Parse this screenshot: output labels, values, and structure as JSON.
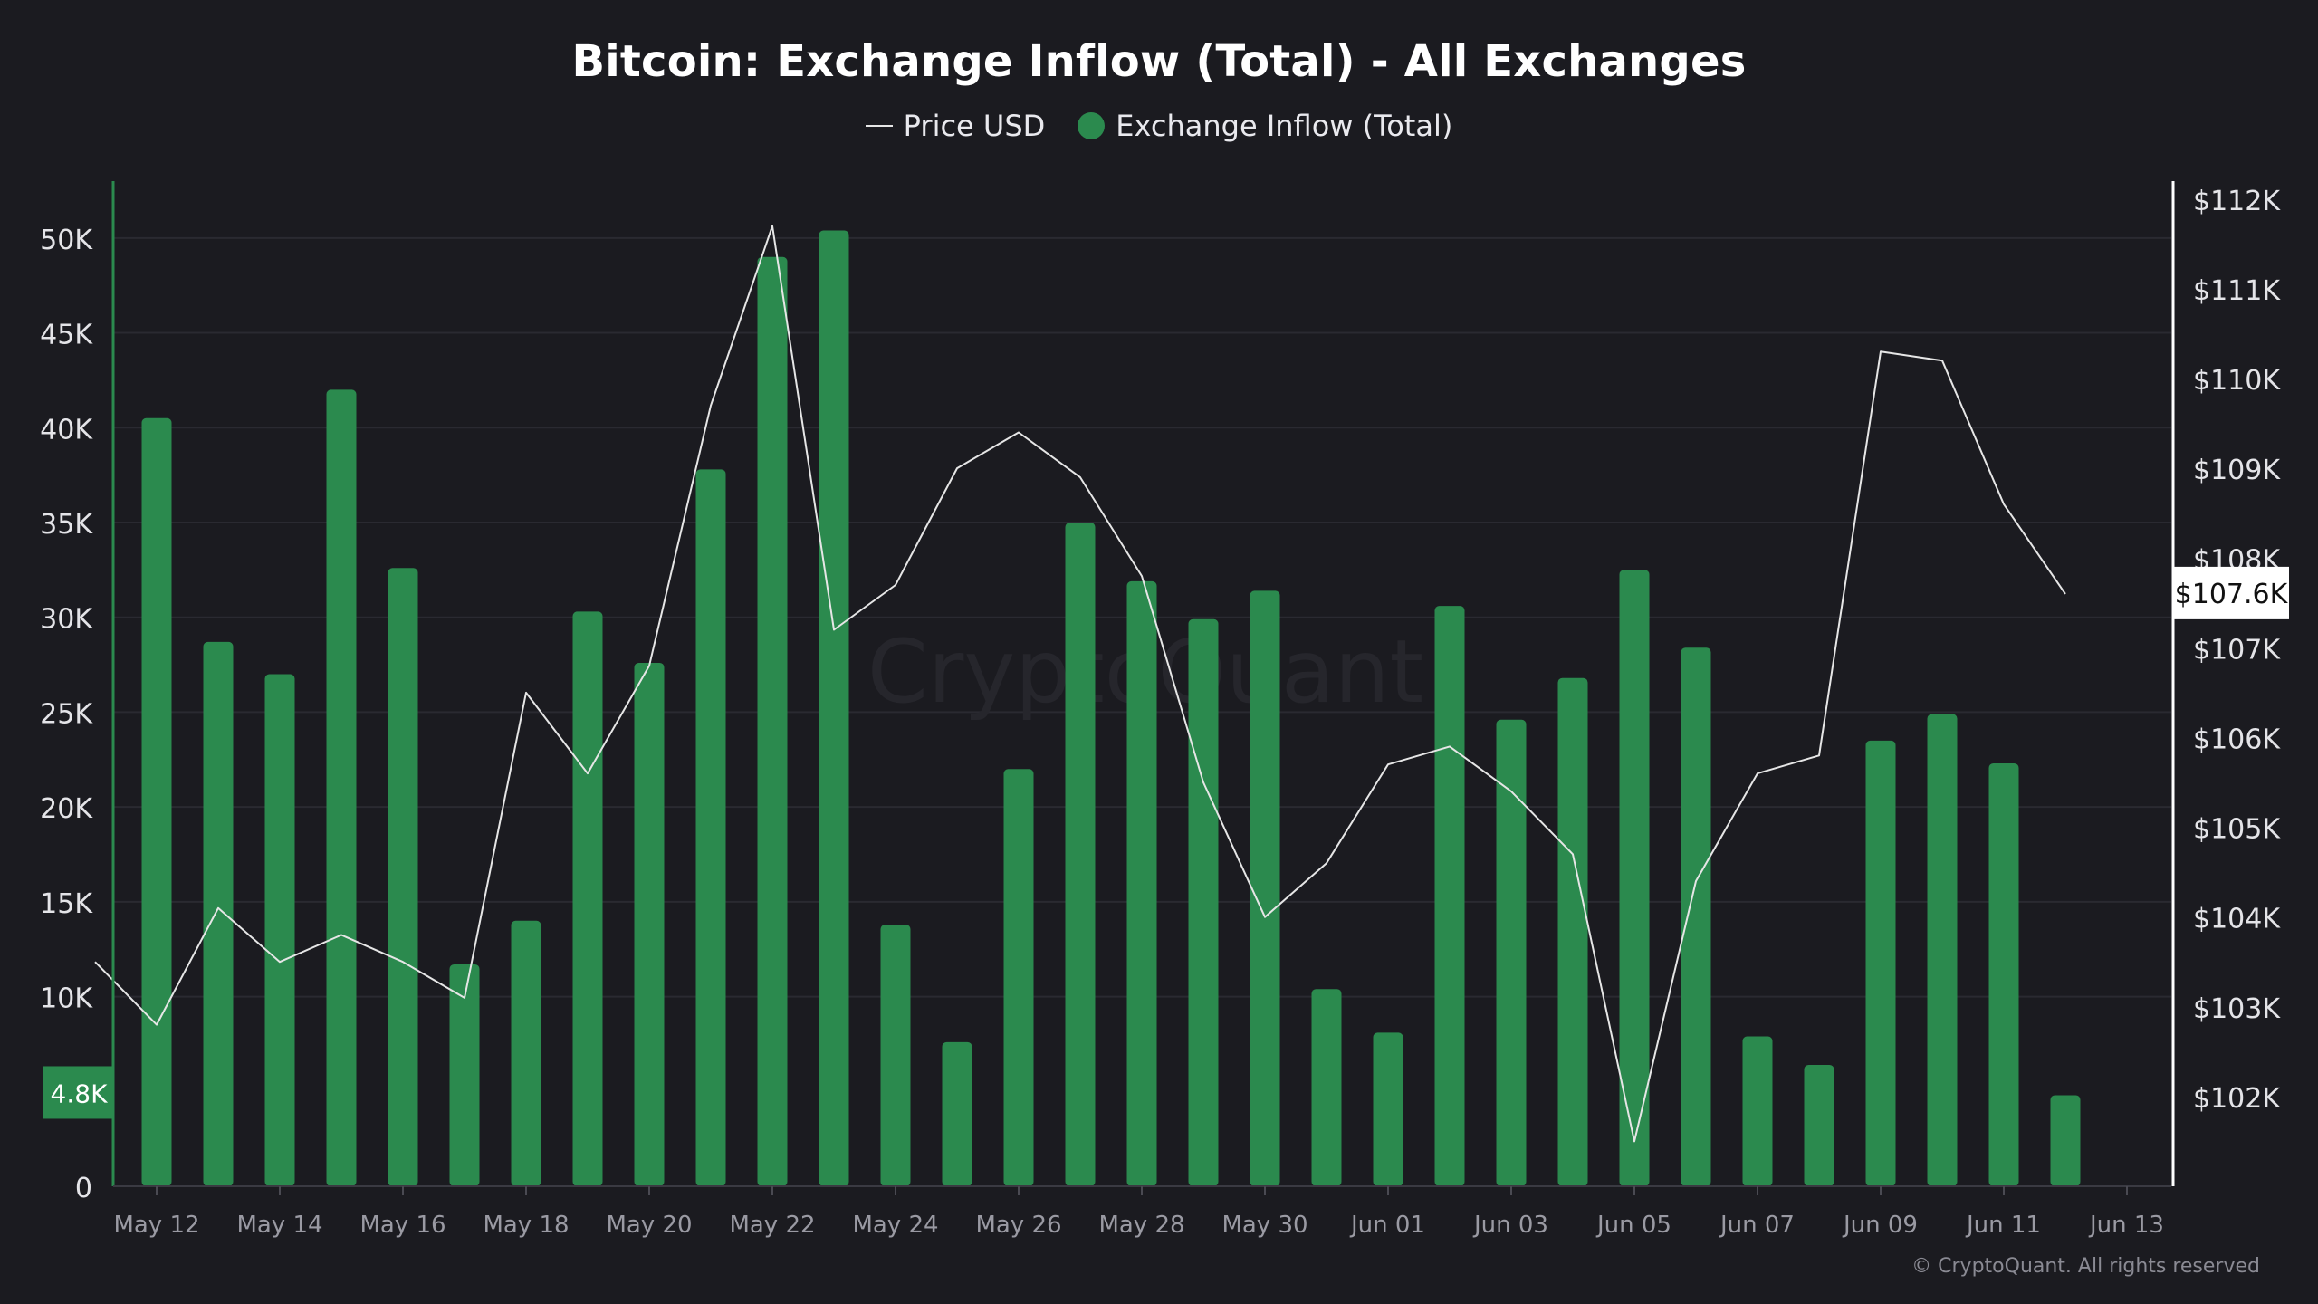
{
  "chart_data": {
    "type": "bar",
    "title": "Bitcoin: Exchange Inflow (Total) - All Exchanges",
    "legend": {
      "placement": "top-center",
      "entries": [
        "Price USD",
        "Exchange Inflow (Total)"
      ]
    },
    "colors": {
      "background": "#1b1b20",
      "bars": "#2b8a4e",
      "price_line": "#e6e6e6",
      "grid": "#2a2a31",
      "axis_text": "#e4e4e8",
      "date_text": "#9a9aa3",
      "left_axis_line": "#2b8a4e",
      "right_axis_line": "#ffffff"
    },
    "x_ticks": [
      "May 12",
      "May 14",
      "May 16",
      "May 18",
      "May 20",
      "May 22",
      "May 24",
      "May 26",
      "May 28",
      "May 30",
      "Jun 01",
      "Jun 03",
      "Jun 05",
      "Jun 07",
      "Jun 09",
      "Jun 11",
      "Jun 13"
    ],
    "left_axis": {
      "ticks": [
        "0",
        "10K",
        "15K",
        "20K",
        "25K",
        "30K",
        "35K",
        "40K",
        "45K",
        "50K"
      ],
      "tick_values": [
        0,
        10000,
        15000,
        20000,
        25000,
        30000,
        35000,
        40000,
        45000,
        50000
      ],
      "ylim": [
        0,
        53000
      ]
    },
    "right_axis": {
      "ticks": [
        "$102K",
        "$103K",
        "$104K",
        "$105K",
        "$106K",
        "$107K",
        "$108K",
        "$109K",
        "$110K",
        "$111K",
        "$112K"
      ],
      "tick_values": [
        102000,
        103000,
        104000,
        105000,
        106000,
        107000,
        108000,
        109000,
        110000,
        111000,
        112000
      ],
      "ylim": [
        101000,
        112200
      ]
    },
    "grid": true,
    "series": [
      {
        "name": "Exchange Inflow (Total)",
        "kind": "bar",
        "axis": "left",
        "x": [
          "May 12",
          "May 13",
          "May 14",
          "May 15",
          "May 16",
          "May 17",
          "May 18",
          "May 19",
          "May 20",
          "May 21",
          "May 22",
          "May 23",
          "May 24",
          "May 25",
          "May 26",
          "May 27",
          "May 28",
          "May 29",
          "May 30",
          "May 31",
          "Jun 01",
          "Jun 02",
          "Jun 03",
          "Jun 04",
          "Jun 05",
          "Jun 06",
          "Jun 07",
          "Jun 08",
          "Jun 09",
          "Jun 10",
          "Jun 11",
          "Jun 12"
        ],
        "values": [
          40500,
          28700,
          27000,
          42000,
          32600,
          11700,
          14000,
          30300,
          27600,
          37800,
          49000,
          50400,
          13800,
          7600,
          22000,
          35000,
          31900,
          29900,
          31400,
          10400,
          8100,
          30600,
          24600,
          26800,
          32500,
          28400,
          7900,
          6400,
          23500,
          24900,
          22300,
          4800
        ]
      },
      {
        "name": "Price USD",
        "kind": "line",
        "axis": "right",
        "x": [
          "May 11",
          "May 12",
          "May 13",
          "May 14",
          "May 15",
          "May 16",
          "May 17",
          "May 18",
          "May 19",
          "May 20",
          "May 21",
          "May 22",
          "May 23",
          "May 24",
          "May 25",
          "May 26",
          "May 27",
          "May 28",
          "May 29",
          "May 30",
          "May 31",
          "Jun 01",
          "Jun 02",
          "Jun 03",
          "Jun 04",
          "Jun 05",
          "Jun 06",
          "Jun 07",
          "Jun 08",
          "Jun 09",
          "Jun 10",
          "Jun 11",
          "Jun 12"
        ],
        "values": [
          103500,
          102800,
          104100,
          103500,
          103800,
          103500,
          103100,
          106500,
          105600,
          106800,
          109700,
          111700,
          107200,
          107700,
          109000,
          109400,
          108900,
          107800,
          105500,
          104000,
          104600,
          105700,
          105900,
          105400,
          104700,
          101500,
          104400,
          105600,
          105800,
          110300,
          110200,
          108600,
          107600
        ]
      }
    ],
    "left_marker": {
      "label": "4.8K",
      "value": 4800
    },
    "right_marker": {
      "label": "$107.6K",
      "value": 107600
    }
  },
  "watermark": "CryptoQuant",
  "copyright": "© CryptoQuant. All rights reserved"
}
